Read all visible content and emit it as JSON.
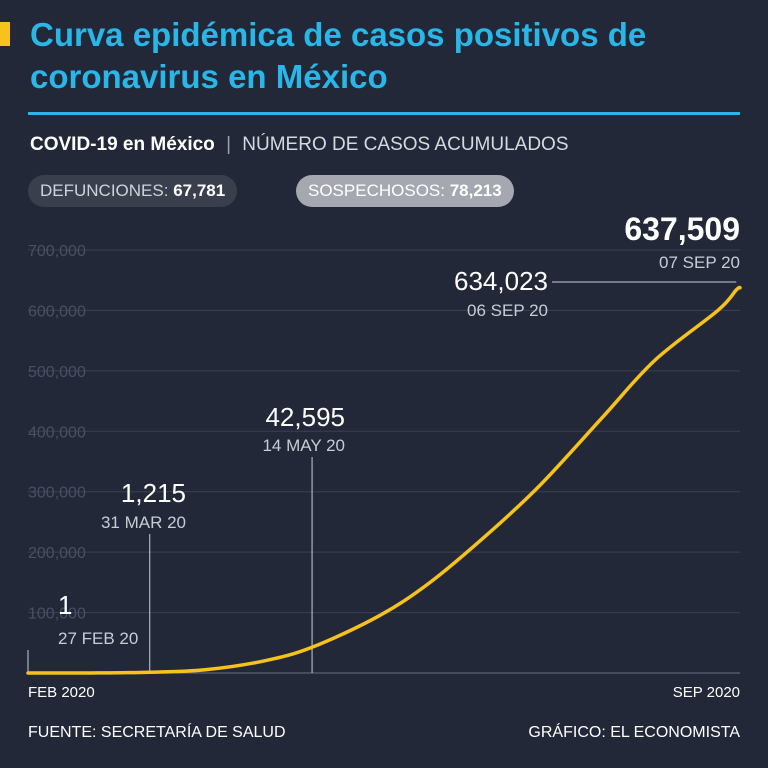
{
  "header": {
    "title": "Curva epidémica de casos positivos de coronavirus en México",
    "subtitle_strong": "COVID-19 en México",
    "subtitle_sep": "|",
    "subtitle_rest": "NÚMERO DE CASOS ACUMULADOS",
    "accent_color": "#f6c21c",
    "title_color": "#29b6e8"
  },
  "badges": {
    "deaths_label": "DEFUNCIONES:",
    "deaths_value": "67,781",
    "suspects_label": "SOSPECHOSOS:",
    "suspects_value": "78,213"
  },
  "footer": {
    "source": "FUENTE: SECRETARÍA DE SALUD",
    "credit": "GRÁFICO: EL ECONOMISTA"
  },
  "chart_data": {
    "type": "line",
    "line_color": "#f6c21c",
    "grid": true,
    "ylim": [
      0,
      700000
    ],
    "yticks": [
      100000,
      200000,
      300000,
      400000,
      500000,
      600000,
      700000
    ],
    "ytick_labels": [
      "100,000",
      "200,000",
      "300,000",
      "400,000",
      "500,000",
      "600,000",
      "700,000"
    ],
    "x_start_label": "FEB 2020",
    "x_end_label": "SEP 2020",
    "x_domain": [
      "2020-02-27",
      "2020-09-07"
    ],
    "series": [
      {
        "points": [
          [
            "2020-02-27",
            1
          ],
          [
            "2020-03-15",
            50
          ],
          [
            "2020-03-31",
            1215
          ],
          [
            "2020-04-15",
            5400
          ],
          [
            "2020-05-01",
            20000
          ],
          [
            "2020-05-14",
            42595
          ],
          [
            "2020-06-01",
            94000
          ],
          [
            "2020-06-15",
            150000
          ],
          [
            "2020-07-01",
            232000
          ],
          [
            "2020-07-15",
            312000
          ],
          [
            "2020-08-01",
            425000
          ],
          [
            "2020-08-15",
            518000
          ],
          [
            "2020-09-01",
            600000
          ],
          [
            "2020-09-06",
            634023
          ],
          [
            "2020-09-07",
            637509
          ]
        ]
      }
    ],
    "annotations": [
      {
        "value": "1",
        "date": "27 FEB 20",
        "x": "2020-02-27",
        "y": 1
      },
      {
        "value": "1,215",
        "date": "31 MAR 20",
        "x": "2020-03-31",
        "y": 1215
      },
      {
        "value": "42,595",
        "date": "14 MAY 20",
        "x": "2020-05-14",
        "y": 42595
      },
      {
        "value": "634,023",
        "date": "06 SEP 20",
        "x": "2020-09-06",
        "y": 634023
      },
      {
        "value": "637,509",
        "date": "07 SEP 20",
        "x": "2020-09-07",
        "y": 637509
      }
    ]
  }
}
